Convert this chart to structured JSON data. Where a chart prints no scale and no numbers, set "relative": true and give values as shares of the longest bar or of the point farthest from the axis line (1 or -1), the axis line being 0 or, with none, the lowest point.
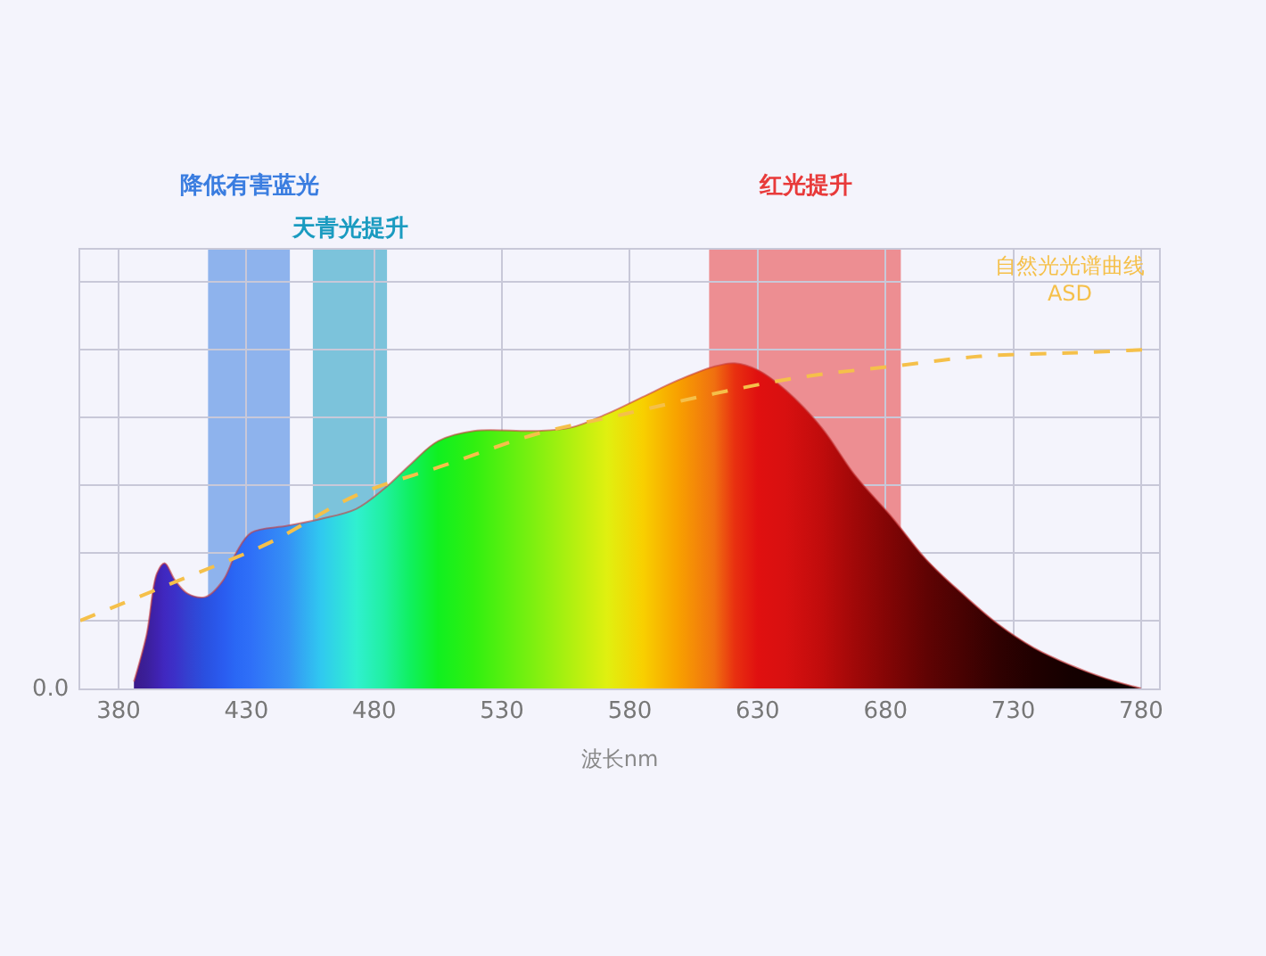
{
  "chart_data": {
    "type": "area",
    "relative": true,
    "xlabel": "波长nm",
    "xlim": [
      365,
      787
    ],
    "xticks": [
      380,
      430,
      480,
      530,
      580,
      630,
      680,
      730,
      780
    ],
    "grid": true,
    "annotations": [
      "0.0"
    ],
    "series": [
      {
        "x": [
          386,
          391,
          395,
          398,
          402,
          407,
          414,
          421,
          426,
          432,
          446,
          459,
          473,
          484,
          494,
          505,
          519,
          543,
          557,
          571,
          585,
          599,
          613,
          621,
          630,
          641,
          655,
          668,
          682,
          696,
          710,
          724,
          738,
          752,
          766,
          780
        ],
        "values": [
          0.02,
          0.16,
          0.34,
          0.37,
          0.32,
          0.28,
          0.27,
          0.32,
          0.4,
          0.46,
          0.48,
          0.5,
          0.53,
          0.59,
          0.66,
          0.73,
          0.76,
          0.76,
          0.77,
          0.81,
          0.86,
          0.91,
          0.95,
          0.96,
          0.94,
          0.88,
          0.77,
          0.63,
          0.51,
          0.38,
          0.28,
          0.19,
          0.12,
          0.07,
          0.03,
          0.0
        ],
        "colors": [
          "#3a1a8a",
          "#3b1f9a",
          "#3f22b0",
          "#4028c0",
          "#3c30c8",
          "#3440d0",
          "#2a50e0",
          "#2a5cf0",
          "#2a68f5",
          "#2f70f8",
          "#3590f5",
          "#30c8f0",
          "#30f0d0",
          "#20f0a0",
          "#10f060",
          "#10f020",
          "#30f010",
          "#80f010",
          "#b0f010",
          "#e0f010",
          "#f8d000",
          "#f8a000",
          "#f07010",
          "#e83010",
          "#e01010",
          "#d81010",
          "#c00c0c",
          "#a00808",
          "#800505",
          "#600303",
          "#480202",
          "#300101",
          "#200000",
          "#150000",
          "#100000",
          "#0a0000"
        ]
      },
      {
        "type": "line",
        "name": "自然光光谱曲线\nASD",
        "color": "#f5c04a",
        "line_style": "dashed",
        "x": [
          365,
          404,
          439,
          473,
          508,
          543,
          578,
          613,
          648,
          682,
          717,
          752,
          783
        ],
        "values": [
          0.2,
          0.32,
          0.43,
          0.57,
          0.66,
          0.75,
          0.81,
          0.87,
          0.92,
          0.95,
          0.98,
          0.99,
          1.0
        ]
      }
    ],
    "bands": [
      {
        "axis": "x",
        "from": 415,
        "to": 447,
        "label": "降低有害蓝光",
        "color": "#3a7de0"
      },
      {
        "axis": "x",
        "from": 456,
        "to": 485,
        "label": "天青光提升",
        "color": "#1a9bc0"
      },
      {
        "axis": "x",
        "from": 611,
        "to": 686,
        "label": "红光提升",
        "color": "#e83a3a"
      }
    ]
  }
}
